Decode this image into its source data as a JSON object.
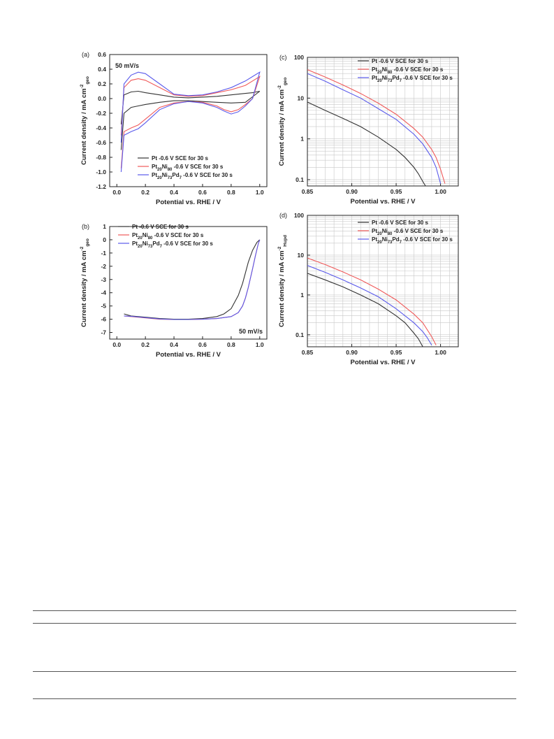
{
  "chart_data": [
    {
      "panel": "(a)",
      "type": "line",
      "annotation": "50 mV/s",
      "xlabel": "Potential vs. RHE / V",
      "ylabel": "Current density / mA cm",
      "ylabel_sup": "-2",
      "ylabel_sub": "geo",
      "xlim": [
        -0.05,
        1.05
      ],
      "ylim": [
        -1.2,
        0.6
      ],
      "xticks": [
        "0.0",
        "0.2",
        "0.4",
        "0.6",
        "0.8",
        "1.0"
      ],
      "yticks": [
        "-1.2",
        "-1.0",
        "-0.8",
        "-0.6",
        "-0.4",
        "-0.2",
        "0.0",
        "0.2",
        "0.4",
        "0.6"
      ],
      "legend_position": "bottom-center",
      "series": [
        {
          "name": "Pt -0.6 V SCE for 30 s",
          "color": "#333333",
          "anodic_x": [
            0.03,
            0.05,
            0.1,
            0.15,
            0.2,
            0.3,
            0.4,
            0.5,
            0.6,
            0.7,
            0.8,
            0.9,
            0.95,
            1.0
          ],
          "anodic_y": [
            -0.35,
            0.05,
            0.09,
            0.1,
            0.08,
            0.05,
            0.02,
            0.01,
            0.02,
            0.03,
            0.05,
            0.07,
            0.08,
            0.1
          ],
          "cathodic_x": [
            1.0,
            0.9,
            0.8,
            0.7,
            0.6,
            0.5,
            0.4,
            0.3,
            0.2,
            0.15,
            0.1,
            0.05,
            0.03
          ],
          "cathodic_y": [
            0.1,
            -0.05,
            -0.06,
            -0.05,
            -0.04,
            -0.03,
            -0.03,
            -0.05,
            -0.08,
            -0.1,
            -0.12,
            -0.2,
            -0.7
          ]
        },
        {
          "name": "Pt20Ni80 -0.6 V SCE for 30 s",
          "color": "#f05a5a",
          "anodic_x": [
            0.03,
            0.05,
            0.1,
            0.15,
            0.2,
            0.3,
            0.4,
            0.5,
            0.6,
            0.7,
            0.8,
            0.9,
            0.95,
            1.0
          ],
          "anodic_y": [
            -0.5,
            0.15,
            0.25,
            0.27,
            0.25,
            0.15,
            0.05,
            0.03,
            0.04,
            0.08,
            0.12,
            0.18,
            0.24,
            0.3
          ],
          "cathodic_x": [
            1.0,
            0.95,
            0.9,
            0.85,
            0.8,
            0.75,
            0.7,
            0.6,
            0.5,
            0.4,
            0.3,
            0.2,
            0.15,
            0.1,
            0.05,
            0.03
          ],
          "cathodic_y": [
            0.3,
            0.0,
            -0.08,
            -0.15,
            -0.18,
            -0.15,
            -0.1,
            -0.05,
            -0.04,
            -0.06,
            -0.12,
            -0.28,
            -0.36,
            -0.4,
            -0.45,
            -0.95
          ]
        },
        {
          "name": "Pt20Ni73Pd7 -0.6 V SCE for 30 s",
          "color": "#5a5aeb",
          "anodic_x": [
            0.03,
            0.05,
            0.1,
            0.15,
            0.2,
            0.3,
            0.4,
            0.5,
            0.6,
            0.7,
            0.8,
            0.9,
            0.95,
            1.0
          ],
          "anodic_y": [
            -0.6,
            0.2,
            0.32,
            0.36,
            0.34,
            0.2,
            0.06,
            0.04,
            0.05,
            0.09,
            0.15,
            0.24,
            0.3,
            0.36
          ],
          "cathodic_x": [
            1.0,
            0.95,
            0.9,
            0.85,
            0.8,
            0.75,
            0.7,
            0.6,
            0.5,
            0.4,
            0.3,
            0.2,
            0.15,
            0.1,
            0.05,
            0.03
          ],
          "cathodic_y": [
            0.36,
            0.0,
            -0.1,
            -0.18,
            -0.21,
            -0.17,
            -0.12,
            -0.06,
            -0.04,
            -0.07,
            -0.15,
            -0.33,
            -0.41,
            -0.45,
            -0.5,
            -1.0
          ]
        }
      ]
    },
    {
      "panel": "(b)",
      "type": "line",
      "annotation": "50 mV/s",
      "xlabel": "Potential vs. RHE / V",
      "ylabel": "Current density / mA cm",
      "ylabel_sup": "-2",
      "ylabel_sub": "geo",
      "xlim": [
        -0.05,
        1.05
      ],
      "ylim": [
        -7.5,
        1
      ],
      "xticks": [
        "0.0",
        "0.2",
        "0.4",
        "0.6",
        "0.8",
        "1.0"
      ],
      "yticks": [
        "-7",
        "-6",
        "-5",
        "-4",
        "-3",
        "-2",
        "-1",
        "0",
        "1"
      ],
      "legend_position": "top-left",
      "series": [
        {
          "name": "Pt -0.6 V SCE for 30 s",
          "color": "#333333",
          "x": [
            0.05,
            0.1,
            0.2,
            0.3,
            0.4,
            0.5,
            0.6,
            0.7,
            0.75,
            0.8,
            0.85,
            0.88,
            0.9,
            0.92,
            0.95,
            0.98,
            1.0
          ],
          "y": [
            -5.6,
            -5.75,
            -5.85,
            -5.95,
            -6.0,
            -6.0,
            -5.95,
            -5.8,
            -5.6,
            -5.2,
            -4.2,
            -3.3,
            -2.5,
            -1.7,
            -0.8,
            -0.2,
            0.0
          ]
        },
        {
          "name": "Pt20Ni80 -0.6 V SCE for 30 s",
          "color": "#f05a5a",
          "x": [
            0.05,
            0.1,
            0.2,
            0.3,
            0.4,
            0.5,
            0.6,
            0.7,
            0.8,
            0.85,
            0.88,
            0.9,
            0.92,
            0.95,
            0.97,
            0.99,
            1.0
          ],
          "y": [
            -5.75,
            -5.8,
            -5.9,
            -6.0,
            -6.02,
            -6.02,
            -6.0,
            -5.95,
            -5.8,
            -5.5,
            -5.0,
            -4.4,
            -3.6,
            -2.2,
            -1.2,
            -0.3,
            0.0
          ]
        },
        {
          "name": "Pt20Ni73Pd7 -0.6 V SCE for 30 s",
          "color": "#5a5aeb",
          "x": [
            0.05,
            0.1,
            0.2,
            0.3,
            0.4,
            0.5,
            0.6,
            0.7,
            0.8,
            0.85,
            0.88,
            0.9,
            0.92,
            0.95,
            0.97,
            0.99,
            1.0
          ],
          "y": [
            -5.75,
            -5.78,
            -5.88,
            -5.98,
            -6.02,
            -6.02,
            -6.0,
            -5.95,
            -5.8,
            -5.5,
            -5.0,
            -4.4,
            -3.6,
            -2.2,
            -1.2,
            -0.3,
            0.0
          ]
        }
      ]
    },
    {
      "panel": "(c)",
      "type": "line",
      "scale": "log",
      "xlabel": "Potential vs. RHE / V",
      "ylabel": "Current density / mA cm",
      "ylabel_sup": "-2",
      "ylabel_sub": "geo",
      "xlim": [
        0.85,
        1.02
      ],
      "ylim": [
        0.07,
        100
      ],
      "xticks": [
        "0.85",
        "0.90",
        "0.95",
        "1.00"
      ],
      "yticks": [
        "0.1",
        "1",
        "10",
        "100"
      ],
      "grid": true,
      "legend_position": "top-right",
      "series": [
        {
          "name": "Pt -0.6 V SCE for 30 s",
          "color": "#333333",
          "x": [
            0.85,
            0.87,
            0.89,
            0.91,
            0.93,
            0.95,
            0.96,
            0.97,
            0.975,
            0.98,
            0.985
          ],
          "y": [
            8,
            5,
            3.2,
            2,
            1.1,
            0.55,
            0.35,
            0.2,
            0.14,
            0.09,
            0.06
          ]
        },
        {
          "name": "Pt20Ni80 -0.6 V SCE for 30 s",
          "color": "#f05a5a",
          "x": [
            0.85,
            0.87,
            0.89,
            0.91,
            0.93,
            0.95,
            0.97,
            0.98,
            0.99,
            0.995,
            1.0,
            1.005
          ],
          "y": [
            50,
            33,
            21,
            13,
            7.5,
            4,
            1.8,
            1.1,
            0.55,
            0.35,
            0.18,
            0.08
          ]
        },
        {
          "name": "Pt20Ni73Pd7 -0.6 V SCE for 30 s",
          "color": "#5a5aeb",
          "x": [
            0.85,
            0.87,
            0.89,
            0.91,
            0.93,
            0.95,
            0.97,
            0.98,
            0.99,
            0.995,
            1.0
          ],
          "y": [
            40,
            26,
            16,
            10,
            5.5,
            3,
            1.3,
            0.75,
            0.35,
            0.2,
            0.08
          ]
        }
      ]
    },
    {
      "panel": "(d)",
      "type": "line",
      "scale": "log",
      "xlabel": "Potential vs. RHE / V",
      "ylabel": "Current density / mA cm",
      "ylabel_sup": "-2",
      "ylabel_sub": "Hupd",
      "xlim": [
        0.85,
        1.02
      ],
      "ylim": [
        0.05,
        100
      ],
      "xticks": [
        "0.85",
        "0.90",
        "0.95",
        "1.00"
      ],
      "yticks": [
        "0.1",
        "1",
        "10",
        "100"
      ],
      "grid": true,
      "legend_position": "top-right",
      "series": [
        {
          "name": "Pt -0.6 V SCE for 30 s",
          "color": "#333333",
          "x": [
            0.85,
            0.87,
            0.89,
            0.91,
            0.93,
            0.95,
            0.96,
            0.97,
            0.975,
            0.98
          ],
          "y": [
            3.5,
            2.4,
            1.6,
            1.0,
            0.6,
            0.3,
            0.2,
            0.11,
            0.08,
            0.05
          ]
        },
        {
          "name": "Pt20Ni80 -0.6 V SCE for 30 s",
          "color": "#f05a5a",
          "x": [
            0.85,
            0.87,
            0.89,
            0.91,
            0.93,
            0.95,
            0.97,
            0.98,
            0.99,
            0.995
          ],
          "y": [
            8.5,
            5.8,
            3.8,
            2.4,
            1.4,
            0.75,
            0.33,
            0.2,
            0.09,
            0.055
          ]
        },
        {
          "name": "Pt20Ni73Pd7 -0.6 V SCE for 30 s",
          "color": "#5a5aeb",
          "x": [
            0.85,
            0.87,
            0.89,
            0.91,
            0.93,
            0.95,
            0.97,
            0.98,
            0.985,
            0.99
          ],
          "y": [
            5.5,
            3.7,
            2.4,
            1.5,
            0.9,
            0.45,
            0.2,
            0.12,
            0.085,
            0.055
          ]
        }
      ]
    }
  ]
}
